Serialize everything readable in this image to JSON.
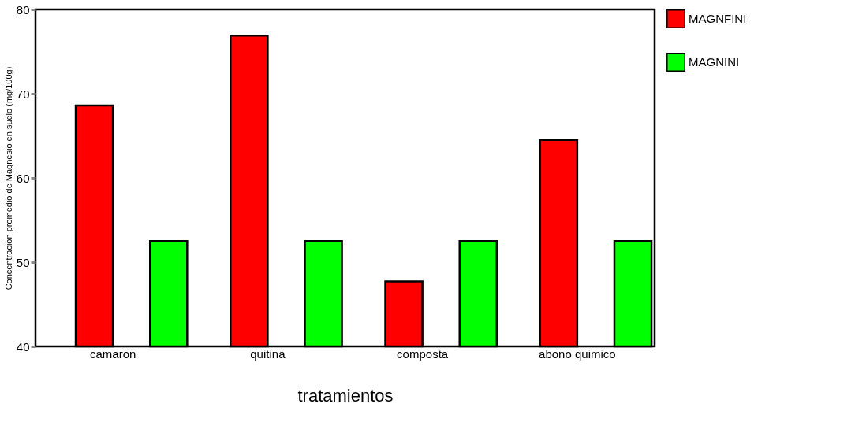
{
  "chart_data": {
    "type": "bar",
    "xlabel": "tratamientos",
    "ylabel": "Concentracion promedio de Magnesio en suelo (mg/100g)",
    "categories": [
      "camaron",
      "quitina",
      "composta",
      "abono quimico"
    ],
    "series": [
      {
        "name": "MAGNFINI",
        "color": "#ff0000",
        "values": [
          68.6,
          76.9,
          47.7,
          64.5
        ]
      },
      {
        "name": "MAGNINI",
        "color": "#00ff00",
        "values": [
          52.5,
          52.5,
          52.5,
          52.5
        ]
      }
    ],
    "ylim": [
      40,
      80
    ],
    "yticks": [
      40,
      50,
      60,
      70,
      80
    ],
    "grid": false,
    "legend": "right"
  }
}
